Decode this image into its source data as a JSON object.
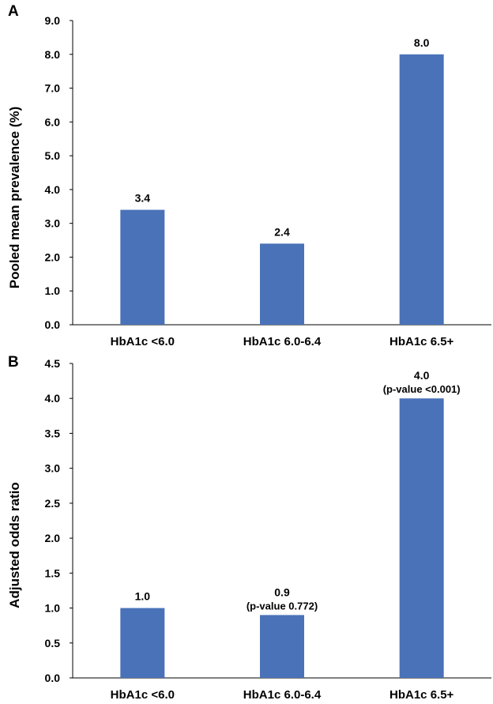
{
  "chart_data": [
    {
      "panel": "A",
      "type": "bar",
      "title": "",
      "xlabel": "",
      "ylabel": "Pooled mean prevalence (%)",
      "categories": [
        "HbA1c <6.0",
        "HbA1c 6.0-6.4",
        "HbA1c 6.5+"
      ],
      "values": [
        3.4,
        2.4,
        8.0
      ],
      "data_labels": [
        "3.4",
        "2.4",
        "8.0"
      ],
      "sub_labels": [
        "",
        "",
        ""
      ],
      "ylim": [
        0,
        9
      ],
      "yticks": [
        "0.0",
        "1.0",
        "2.0",
        "3.0",
        "4.0",
        "5.0",
        "6.0",
        "7.0",
        "8.0",
        "9.0"
      ],
      "bar_color": "#4a72b8",
      "grid": false,
      "legend": "none"
    },
    {
      "panel": "B",
      "type": "bar",
      "title": "",
      "xlabel": "",
      "ylabel": "Adjusted odds ratio",
      "categories": [
        "HbA1c <6.0",
        "HbA1c 6.0-6.4",
        "HbA1c 6.5+"
      ],
      "values": [
        1.0,
        0.9,
        4.0
      ],
      "data_labels": [
        "1.0",
        "0.9",
        "4.0"
      ],
      "sub_labels": [
        "",
        "(p-value 0.772)",
        "(p-value <0.001)"
      ],
      "ylim": [
        0,
        4.5
      ],
      "yticks": [
        "0.0",
        "0.5",
        "1.0",
        "1.5",
        "2.0",
        "2.5",
        "3.0",
        "3.5",
        "4.0",
        "4.5"
      ],
      "bar_color": "#4a72b8",
      "grid": false,
      "legend": "none"
    }
  ]
}
